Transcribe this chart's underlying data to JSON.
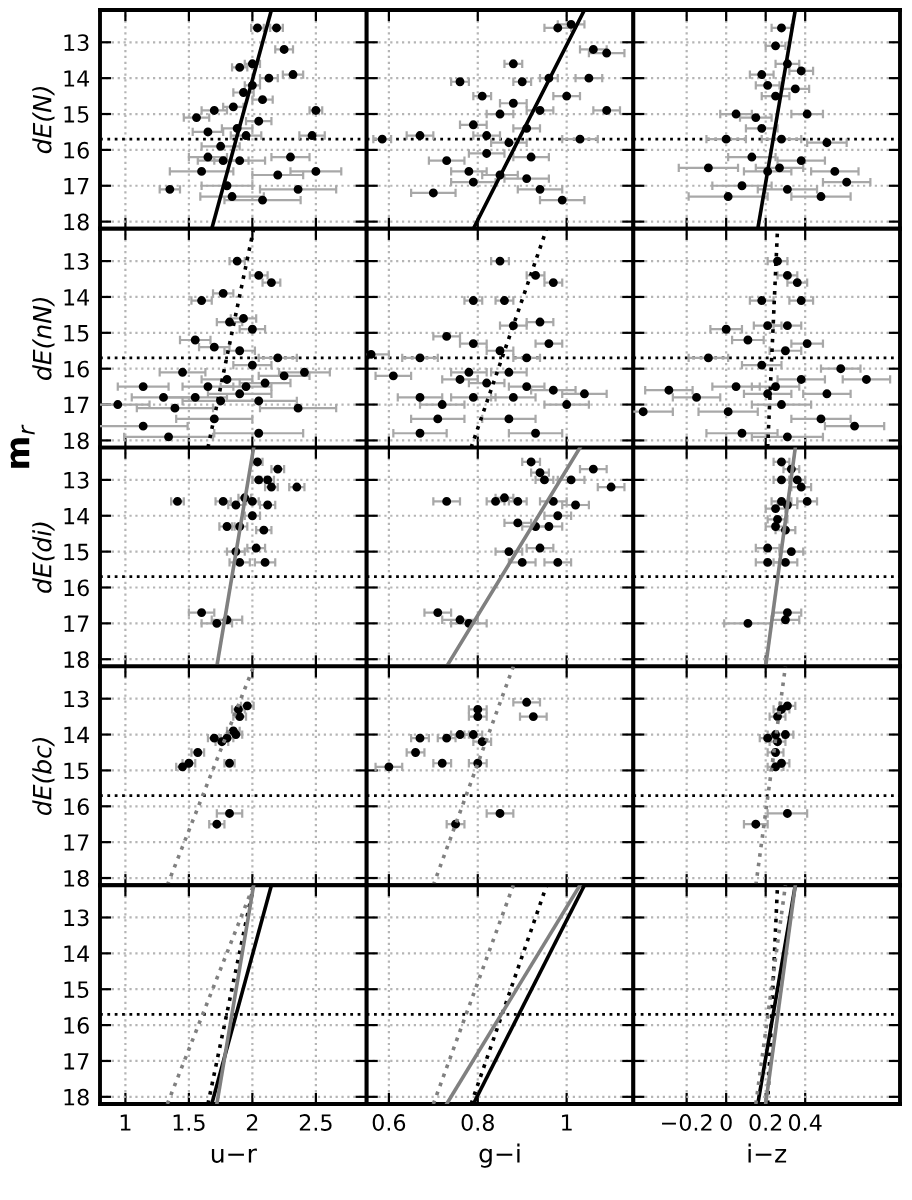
{
  "chart_data": [
    {
      "type": "scatter",
      "ylabel": "dE(N)",
      "xlim": [
        0.8,
        2.9
      ],
      "ylim": [
        18.2,
        12.1
      ],
      "xticks": [
        1,
        1.5,
        2,
        2.5
      ],
      "yticks": [
        13,
        14,
        15,
        16,
        17,
        18
      ],
      "grid": true,
      "tick_labels": "y",
      "ref_lines": [
        {
          "axis": "y",
          "value": 15.7,
          "line_style": "dotted",
          "color": "#000000"
        }
      ],
      "series": [
        {
          "type": "scatter",
          "marker": "circle",
          "color": "#000000",
          "x": [
            2.04,
            2.19,
            1.9,
            2.25,
            2.32,
            2.5,
            2.47,
            2.3,
            2.0,
            1.85,
            2.05,
            1.65,
            1.56,
            1.75,
            1.9,
            1.6,
            1.8,
            1.35,
            2.08,
            2.36,
            2.5,
            2.2,
            1.95,
            2.08,
            1.93,
            2.13,
            2.0,
            1.65,
            1.84,
            1.77,
            1.7,
            1.88
          ],
          "values": [
            12.6,
            12.6,
            13.7,
            13.2,
            13.9,
            14.9,
            15.6,
            16.2,
            14.2,
            14.8,
            15.2,
            15.5,
            15.1,
            15.9,
            16.3,
            16.6,
            17.0,
            17.1,
            17.4,
            17.1,
            16.6,
            16.7,
            15.6,
            14.6,
            14.4,
            14.0,
            13.6,
            16.2,
            17.3,
            16.3,
            14.9,
            15.4
          ],
          "xerrors": [
            0.05,
            0.05,
            0.06,
            0.07,
            0.08,
            0.05,
            0.1,
            0.15,
            0.06,
            0.08,
            0.1,
            0.12,
            0.1,
            0.15,
            0.2,
            0.25,
            0.2,
            0.08,
            0.3,
            0.3,
            0.2,
            0.2,
            0.12,
            0.08,
            0.08,
            0.07,
            0.06,
            0.15,
            0.25,
            0.2,
            0.1,
            0.12
          ]
        },
        {
          "type": "line",
          "marker": "none",
          "line_style": "solid",
          "color": "#000000",
          "x": [
            1.68,
            2.15
          ],
          "values": [
            18.2,
            12.1
          ]
        }
      ]
    },
    {
      "type": "scatter",
      "xlim": [
        0.55,
        1.15
      ],
      "ylim": [
        18.2,
        12.1
      ],
      "xticks": [
        0.6,
        0.8,
        1
      ],
      "yticks": [
        13,
        14,
        15,
        16,
        17,
        18
      ],
      "grid": true,
      "tick_labels": false,
      "ref_lines": [
        {
          "axis": "y",
          "value": 15.7,
          "line_style": "dotted",
          "color": "#000000"
        }
      ],
      "series": [
        {
          "type": "scatter",
          "marker": "circle",
          "color": "#000000",
          "x": [
            0.585,
            0.67,
            0.76,
            0.73,
            0.7,
            0.79,
            0.82,
            0.88,
            0.91,
            0.94,
            0.96,
            0.88,
            0.98,
            1.01,
            1.06,
            1.09,
            1.05,
            1.09,
            1.03,
            0.99,
            0.94,
            0.85,
            0.79,
            0.82,
            0.92,
            0.87,
            0.91,
            1.0,
            0.9,
            0.85,
            0.78,
            0.81
          ],
          "values": [
            15.7,
            15.6,
            14.1,
            16.3,
            17.2,
            15.3,
            16.1,
            14.7,
            15.4,
            14.9,
            14.0,
            13.6,
            12.6,
            12.5,
            13.2,
            13.3,
            14.0,
            14.9,
            15.7,
            17.4,
            17.1,
            16.7,
            16.9,
            15.6,
            16.2,
            15.8,
            16.8,
            14.5,
            14.1,
            15.0,
            16.6,
            14.5
          ],
          "xerrors": [
            0.02,
            0.03,
            0.02,
            0.04,
            0.05,
            0.03,
            0.04,
            0.03,
            0.03,
            0.03,
            0.02,
            0.02,
            0.03,
            0.03,
            0.03,
            0.04,
            0.03,
            0.03,
            0.04,
            0.05,
            0.05,
            0.04,
            0.05,
            0.03,
            0.04,
            0.04,
            0.05,
            0.03,
            0.02,
            0.03,
            0.04,
            0.02
          ]
        },
        {
          "type": "line",
          "marker": "none",
          "line_style": "solid",
          "color": "#000000",
          "x": [
            0.79,
            1.04
          ],
          "values": [
            18.2,
            12.1
          ]
        }
      ]
    },
    {
      "type": "scatter",
      "xlim": [
        -0.47,
        0.88
      ],
      "ylim": [
        18.2,
        12.1
      ],
      "xticks": [
        -0.2,
        0,
        0.2,
        0.4
      ],
      "yticks": [
        13,
        14,
        15,
        16,
        17,
        18
      ],
      "grid": true,
      "tick_labels": false,
      "ref_lines": [
        {
          "axis": "y",
          "value": 15.7,
          "line_style": "dotted",
          "color": "#000000"
        }
      ],
      "series": [
        {
          "type": "scatter",
          "marker": "circle",
          "color": "#000000",
          "x": [
            0.28,
            0.25,
            0.31,
            0.21,
            0.35,
            0.05,
            0.41,
            0.18,
            0.0,
            0.28,
            0.51,
            0.13,
            0.38,
            -0.09,
            0.21,
            0.55,
            0.08,
            0.31,
            0.61,
            0.01,
            0.48,
            0.25,
            0.15,
            0.38,
            0.27,
            0.18
          ],
          "values": [
            12.6,
            13.1,
            13.6,
            14.2,
            14.3,
            15.0,
            15.0,
            15.4,
            15.7,
            15.7,
            15.8,
            16.2,
            16.3,
            16.5,
            16.6,
            16.6,
            17.0,
            17.1,
            16.9,
            17.3,
            17.3,
            14.5,
            15.1,
            13.8,
            16.5,
            13.9
          ],
          "xerrors": [
            0.05,
            0.05,
            0.06,
            0.06,
            0.07,
            0.08,
            0.08,
            0.08,
            0.1,
            0.1,
            0.1,
            0.12,
            0.12,
            0.15,
            0.12,
            0.12,
            0.15,
            0.15,
            0.12,
            0.2,
            0.15,
            0.07,
            0.08,
            0.06,
            0.12,
            0.06
          ]
        },
        {
          "type": "line",
          "marker": "none",
          "line_style": "solid",
          "color": "#000000",
          "x": [
            0.16,
            0.35
          ],
          "values": [
            18.2,
            12.1
          ]
        }
      ]
    },
    {
      "type": "scatter",
      "ylabel": "dE(nN)",
      "annotations": [
        "m$_{r}$"
      ],
      "xlim": [
        0.8,
        2.9
      ],
      "ylim": [
        18.2,
        12.1
      ],
      "xticks": [
        1,
        1.5,
        2,
        2.5
      ],
      "yticks": [
        13,
        14,
        15,
        16,
        17,
        18
      ],
      "grid": true,
      "tick_labels": "y",
      "ref_lines": [
        {
          "axis": "y",
          "value": 15.7,
          "line_style": "dotted",
          "color": "#000000"
        }
      ],
      "series": [
        {
          "type": "scatter",
          "marker": "circle",
          "color": "#000000",
          "x": [
            1.88,
            2.05,
            2.15,
            1.6,
            1.77,
            1.82,
            1.93,
            1.55,
            1.7,
            1.9,
            2.0,
            2.2,
            1.45,
            1.65,
            1.8,
            1.95,
            2.1,
            2.25,
            2.41,
            1.14,
            1.3,
            0.94,
            1.39,
            1.55,
            1.75,
            2.05,
            2.36,
            1.14,
            1.34,
            2.05,
            1.7,
            1.9,
            2.0
          ],
          "values": [
            13.0,
            13.4,
            13.6,
            14.1,
            13.9,
            14.7,
            14.6,
            15.2,
            15.4,
            15.5,
            15.9,
            15.7,
            16.1,
            16.5,
            16.3,
            16.5,
            16.4,
            16.2,
            16.1,
            16.5,
            16.8,
            17.0,
            17.1,
            16.8,
            16.9,
            16.9,
            17.1,
            17.6,
            17.9,
            17.8,
            17.4,
            16.7,
            14.9
          ],
          "xerrors": [
            0.06,
            0.07,
            0.07,
            0.08,
            0.08,
            0.1,
            0.1,
            0.12,
            0.12,
            0.12,
            0.15,
            0.15,
            0.18,
            0.2,
            0.2,
            0.2,
            0.2,
            0.2,
            0.2,
            0.2,
            0.25,
            0.25,
            0.3,
            0.25,
            0.3,
            0.3,
            0.3,
            0.35,
            0.35,
            0.35,
            0.3,
            0.25,
            0.1
          ]
        },
        {
          "type": "line",
          "marker": "none",
          "line_style": "dotted",
          "color": "#000000",
          "x": [
            1.65,
            2.01
          ],
          "values": [
            18.2,
            12.1
          ]
        }
      ]
    },
    {
      "type": "scatter",
      "xlim": [
        0.55,
        1.15
      ],
      "ylim": [
        18.2,
        12.1
      ],
      "xticks": [
        0.6,
        0.8,
        1
      ],
      "yticks": [
        13,
        14,
        15,
        16,
        17,
        18
      ],
      "grid": true,
      "tick_labels": false,
      "ref_lines": [
        {
          "axis": "y",
          "value": 15.7,
          "line_style": "dotted",
          "color": "#000000"
        }
      ],
      "series": [
        {
          "type": "scatter",
          "marker": "circle",
          "color": "#000000",
          "x": [
            0.85,
            0.93,
            0.97,
            0.79,
            0.86,
            0.88,
            0.94,
            0.73,
            0.79,
            0.85,
            0.91,
            0.96,
            0.56,
            0.61,
            0.67,
            0.76,
            0.82,
            0.87,
            0.91,
            0.67,
            0.72,
            0.79,
            0.88,
            0.97,
            1.04,
            0.71,
            0.67,
            0.87,
            0.93,
            1.0,
            0.78
          ],
          "values": [
            13.0,
            13.4,
            13.6,
            14.1,
            14.1,
            14.8,
            14.7,
            15.1,
            15.3,
            15.5,
            15.7,
            15.3,
            15.6,
            16.2,
            15.7,
            16.3,
            16.4,
            16.1,
            16.5,
            16.8,
            17.0,
            16.8,
            16.8,
            16.6,
            16.7,
            17.4,
            17.8,
            17.4,
            17.8,
            17.0,
            16.1
          ],
          "xerrors": [
            0.02,
            0.02,
            0.02,
            0.02,
            0.02,
            0.03,
            0.03,
            0.03,
            0.03,
            0.03,
            0.03,
            0.03,
            0.04,
            0.04,
            0.04,
            0.04,
            0.04,
            0.04,
            0.04,
            0.05,
            0.05,
            0.05,
            0.05,
            0.05,
            0.05,
            0.06,
            0.06,
            0.06,
            0.06,
            0.05,
            0.04
          ]
        },
        {
          "type": "line",
          "marker": "none",
          "line_style": "dotted",
          "color": "#000000",
          "x": [
            0.785,
            0.955
          ],
          "values": [
            18.2,
            12.1
          ]
        }
      ]
    },
    {
      "type": "scatter",
      "xlim": [
        -0.47,
        0.88
      ],
      "ylim": [
        18.2,
        12.1
      ],
      "xticks": [
        -0.2,
        0,
        0.2,
        0.4
      ],
      "yticks": [
        13,
        14,
        15,
        16,
        17,
        18
      ],
      "grid": true,
      "tick_labels": false,
      "ref_lines": [
        {
          "axis": "y",
          "value": 15.7,
          "line_style": "dotted",
          "color": "#000000"
        }
      ],
      "series": [
        {
          "type": "scatter",
          "marker": "circle",
          "color": "#000000",
          "x": [
            0.26,
            0.31,
            0.36,
            0.18,
            0.38,
            0.21,
            0.31,
            0.0,
            0.11,
            0.3,
            0.41,
            -0.09,
            0.18,
            0.58,
            -0.29,
            -0.15,
            0.05,
            0.25,
            0.38,
            0.51,
            0.71,
            -0.42,
            0.01,
            0.28,
            0.48,
            0.65,
            0.08,
            0.31,
            0.21
          ],
          "values": [
            13.0,
            13.4,
            13.6,
            14.1,
            14.1,
            14.8,
            14.8,
            14.9,
            15.2,
            15.5,
            15.3,
            15.7,
            15.9,
            16.0,
            16.6,
            16.8,
            16.5,
            16.5,
            16.3,
            16.7,
            16.3,
            17.2,
            17.2,
            17.0,
            17.4,
            17.6,
            17.8,
            17.9,
            16.7
          ],
          "xerrors": [
            0.05,
            0.05,
            0.05,
            0.06,
            0.06,
            0.07,
            0.07,
            0.08,
            0.08,
            0.08,
            0.08,
            0.1,
            0.1,
            0.1,
            0.12,
            0.12,
            0.12,
            0.12,
            0.12,
            0.12,
            0.12,
            0.15,
            0.15,
            0.15,
            0.15,
            0.15,
            0.18,
            0.18,
            0.12
          ]
        },
        {
          "type": "line",
          "marker": "none",
          "line_style": "dotted",
          "color": "#000000",
          "x": [
            0.21,
            0.26
          ],
          "values": [
            18.2,
            12.1
          ]
        }
      ]
    },
    {
      "type": "scatter",
      "ylabel": "dE(di)",
      "xlim": [
        0.8,
        2.9
      ],
      "ylim": [
        18.2,
        12.1
      ],
      "xticks": [
        1,
        1.5,
        2,
        2.5
      ],
      "yticks": [
        13,
        14,
        15,
        16,
        17,
        18
      ],
      "grid": true,
      "tick_labels": "y",
      "ref_lines": [
        {
          "axis": "y",
          "value": 15.7,
          "line_style": "dotted",
          "color": "#000000"
        }
      ],
      "series": [
        {
          "type": "scatter",
          "marker": "circle",
          "color": "#000000",
          "x": [
            2.04,
            2.2,
            2.05,
            2.12,
            2.15,
            2.35,
            1.41,
            1.77,
            1.87,
            2.0,
            1.94,
            2.12,
            2.0,
            1.8,
            1.9,
            2.09,
            1.87,
            2.03,
            1.9,
            2.1,
            1.6,
            1.72,
            1.8
          ],
          "values": [
            12.5,
            12.7,
            13.0,
            13.0,
            13.2,
            13.2,
            13.6,
            13.6,
            13.7,
            13.6,
            13.5,
            13.7,
            14.0,
            14.3,
            14.3,
            14.4,
            15.0,
            14.9,
            15.3,
            15.3,
            16.7,
            17.0,
            16.9
          ],
          "xerrors": [
            0.04,
            0.05,
            0.05,
            0.05,
            0.05,
            0.06,
            0.05,
            0.06,
            0.06,
            0.05,
            0.05,
            0.06,
            0.06,
            0.06,
            0.06,
            0.06,
            0.07,
            0.07,
            0.08,
            0.08,
            0.1,
            0.12,
            0.12
          ]
        },
        {
          "type": "line",
          "marker": "none",
          "line_style": "solid",
          "color": "#808080",
          "x": [
            1.72,
            2.01
          ],
          "values": [
            18.2,
            12.1
          ]
        }
      ]
    },
    {
      "type": "scatter",
      "xlim": [
        0.55,
        1.15
      ],
      "ylim": [
        18.2,
        12.1
      ],
      "xticks": [
        0.6,
        0.8,
        1
      ],
      "yticks": [
        13,
        14,
        15,
        16,
        17,
        18
      ],
      "grid": true,
      "tick_labels": false,
      "ref_lines": [
        {
          "axis": "y",
          "value": 15.7,
          "line_style": "dotted",
          "color": "#000000"
        }
      ],
      "series": [
        {
          "type": "scatter",
          "marker": "circle",
          "color": "#000000",
          "x": [
            0.92,
            0.94,
            1.06,
            0.95,
            1.01,
            1.1,
            0.73,
            0.86,
            0.89,
            0.97,
            0.84,
            1.02,
            0.98,
            0.93,
            0.96,
            0.89,
            0.87,
            0.94,
            0.9,
            0.98,
            0.71,
            0.76,
            0.78
          ],
          "values": [
            12.5,
            12.8,
            12.7,
            13.0,
            13.0,
            13.2,
            13.6,
            13.5,
            13.6,
            13.6,
            13.6,
            13.7,
            14.0,
            14.3,
            14.3,
            14.2,
            15.0,
            14.9,
            15.3,
            15.3,
            16.7,
            16.9,
            17.0
          ],
          "xerrors": [
            0.02,
            0.02,
            0.03,
            0.02,
            0.03,
            0.03,
            0.03,
            0.02,
            0.02,
            0.03,
            0.02,
            0.03,
            0.03,
            0.03,
            0.03,
            0.03,
            0.03,
            0.03,
            0.03,
            0.03,
            0.03,
            0.04,
            0.04
          ]
        },
        {
          "type": "line",
          "marker": "none",
          "line_style": "solid",
          "color": "#808080",
          "x": [
            0.73,
            1.03
          ],
          "values": [
            18.2,
            12.1
          ]
        }
      ]
    },
    {
      "type": "scatter",
      "xlim": [
        -0.47,
        0.88
      ],
      "ylim": [
        18.2,
        12.1
      ],
      "xticks": [
        -0.2,
        0,
        0.2,
        0.4
      ],
      "yticks": [
        13,
        14,
        15,
        16,
        17,
        18
      ],
      "grid": true,
      "tick_labels": false,
      "ref_lines": [
        {
          "axis": "y",
          "value": 15.7,
          "line_style": "dotted",
          "color": "#000000"
        }
      ],
      "series": [
        {
          "type": "scatter",
          "marker": "circle",
          "color": "#000000",
          "x": [
            0.28,
            0.33,
            0.28,
            0.36,
            0.38,
            0.41,
            0.28,
            0.31,
            0.25,
            0.26,
            0.25,
            0.3,
            0.21,
            0.33,
            0.21,
            0.3,
            0.31,
            0.3,
            0.11
          ],
          "values": [
            12.5,
            12.7,
            13.0,
            13.0,
            13.2,
            13.6,
            13.6,
            13.7,
            13.8,
            14.1,
            14.3,
            14.4,
            14.9,
            15.0,
            15.3,
            15.3,
            16.7,
            16.9,
            17.0
          ],
          "xerrors": [
            0.04,
            0.04,
            0.04,
            0.04,
            0.05,
            0.05,
            0.05,
            0.05,
            0.05,
            0.05,
            0.05,
            0.05,
            0.06,
            0.06,
            0.06,
            0.06,
            0.07,
            0.07,
            0.12
          ]
        },
        {
          "type": "line",
          "marker": "none",
          "line_style": "solid",
          "color": "#808080",
          "x": [
            0.2,
            0.35
          ],
          "values": [
            18.2,
            12.1
          ]
        }
      ]
    },
    {
      "type": "scatter",
      "ylabel": "dE(bc)",
      "xlim": [
        0.8,
        2.9
      ],
      "ylim": [
        18.2,
        12.1
      ],
      "xticks": [
        1,
        1.5,
        2,
        2.5
      ],
      "yticks": [
        13,
        14,
        15,
        16,
        17,
        18
      ],
      "grid": true,
      "tick_labels": "y",
      "ref_lines": [
        {
          "axis": "y",
          "value": 15.7,
          "line_style": "dotted",
          "color": "#000000"
        }
      ],
      "series": [
        {
          "type": "scatter",
          "marker": "circle",
          "color": "#000000",
          "x": [
            1.96,
            1.89,
            1.9,
            1.85,
            1.87,
            1.7,
            1.8,
            1.76,
            1.57,
            1.5,
            1.45,
            1.82,
            1.82,
            1.72
          ],
          "values": [
            13.2,
            13.3,
            13.5,
            13.9,
            14.0,
            14.1,
            14.1,
            14.2,
            14.5,
            14.8,
            14.9,
            14.8,
            16.2,
            16.5
          ],
          "xerrors": [
            0.05,
            0.05,
            0.05,
            0.05,
            0.05,
            0.05,
            0.05,
            0.05,
            0.05,
            0.05,
            0.05,
            0.04,
            0.1,
            0.06
          ]
        },
        {
          "type": "line",
          "marker": "none",
          "line_style": "dotted",
          "color": "#808080",
          "x": [
            1.33,
            2.01
          ],
          "values": [
            18.2,
            12.1
          ]
        }
      ]
    },
    {
      "type": "scatter",
      "xlim": [
        0.55,
        1.15
      ],
      "ylim": [
        18.2,
        12.1
      ],
      "xticks": [
        0.6,
        0.8,
        1
      ],
      "yticks": [
        13,
        14,
        15,
        16,
        17,
        18
      ],
      "grid": true,
      "tick_labels": false,
      "ref_lines": [
        {
          "axis": "y",
          "value": 15.7,
          "line_style": "dotted",
          "color": "#000000"
        }
      ],
      "series": [
        {
          "type": "scatter",
          "marker": "circle",
          "color": "#000000",
          "x": [
            0.91,
            0.925,
            0.8,
            0.79,
            0.67,
            0.73,
            0.76,
            0.81,
            0.66,
            0.72,
            0.8,
            0.6,
            0.85,
            0.75,
            0.8
          ],
          "values": [
            13.1,
            13.5,
            13.5,
            14.0,
            14.1,
            14.1,
            14.0,
            14.2,
            14.5,
            14.8,
            14.8,
            14.9,
            16.2,
            16.5,
            13.3
          ],
          "xerrors": [
            0.03,
            0.03,
            0.02,
            0.02,
            0.02,
            0.02,
            0.02,
            0.02,
            0.02,
            0.02,
            0.02,
            0.03,
            0.03,
            0.02,
            0.02
          ]
        },
        {
          "type": "line",
          "marker": "none",
          "line_style": "dotted",
          "color": "#808080",
          "x": [
            0.7,
            0.88
          ],
          "values": [
            18.2,
            12.1
          ]
        }
      ]
    },
    {
      "type": "scatter",
      "xlim": [
        -0.47,
        0.88
      ],
      "ylim": [
        18.2,
        12.1
      ],
      "xticks": [
        -0.2,
        0,
        0.2,
        0.4
      ],
      "yticks": [
        13,
        14,
        15,
        16,
        17,
        18
      ],
      "grid": true,
      "tick_labels": false,
      "ref_lines": [
        {
          "axis": "y",
          "value": 15.7,
          "line_style": "dotted",
          "color": "#000000"
        }
      ],
      "series": [
        {
          "type": "scatter",
          "marker": "circle",
          "color": "#000000",
          "x": [
            0.31,
            0.28,
            0.26,
            0.25,
            0.21,
            0.3,
            0.26,
            0.25,
            0.28,
            0.25,
            0.31,
            0.15
          ],
          "values": [
            13.2,
            13.3,
            13.5,
            14.0,
            14.1,
            14.0,
            14.2,
            14.5,
            14.8,
            14.9,
            16.2,
            16.5
          ],
          "xerrors": [
            0.04,
            0.04,
            0.04,
            0.04,
            0.04,
            0.04,
            0.04,
            0.04,
            0.04,
            0.04,
            0.1,
            0.06
          ]
        },
        {
          "type": "line",
          "marker": "none",
          "line_style": "dotted",
          "color": "#808080",
          "x": [
            0.15,
            0.3
          ],
          "values": [
            18.2,
            12.1
          ]
        }
      ]
    },
    {
      "type": "line",
      "xlabel": "u−r",
      "xlim": [
        0.8,
        2.9
      ],
      "ylim": [
        18.2,
        12.1
      ],
      "xticks": [
        1,
        1.5,
        2,
        2.5
      ],
      "yticks": [
        13,
        14,
        15,
        16,
        17,
        18
      ],
      "grid": true,
      "ref_lines": [
        {
          "axis": "y",
          "value": 15.7,
          "line_style": "dotted",
          "color": "#000000"
        }
      ],
      "series": [
        {
          "line_style": "solid",
          "color": "#000000",
          "x": [
            1.68,
            2.15
          ],
          "values": [
            18.2,
            12.1
          ]
        },
        {
          "line_style": "dotted",
          "color": "#000000",
          "x": [
            1.65,
            2.01
          ],
          "values": [
            18.2,
            12.1
          ]
        },
        {
          "line_style": "solid",
          "color": "#808080",
          "x": [
            1.72,
            2.01
          ],
          "values": [
            18.2,
            12.1
          ]
        },
        {
          "line_style": "dotted",
          "color": "#808080",
          "x": [
            1.33,
            2.01
          ],
          "values": [
            18.2,
            12.1
          ]
        }
      ]
    },
    {
      "type": "line",
      "xlabel": "g−i",
      "xlim": [
        0.55,
        1.15
      ],
      "ylim": [
        18.2,
        12.1
      ],
      "xticks": [
        0.6,
        0.8,
        1
      ],
      "yticks": [
        13,
        14,
        15,
        16,
        17,
        18
      ],
      "grid": true,
      "tick_labels": "x",
      "ref_lines": [
        {
          "axis": "y",
          "value": 15.7,
          "line_style": "dotted",
          "color": "#000000"
        }
      ],
      "series": [
        {
          "line_style": "solid",
          "color": "#000000",
          "x": [
            0.79,
            1.04
          ],
          "values": [
            18.2,
            12.1
          ]
        },
        {
          "line_style": "dotted",
          "color": "#000000",
          "x": [
            0.785,
            0.955
          ],
          "values": [
            18.2,
            12.1
          ]
        },
        {
          "line_style": "solid",
          "color": "#808080",
          "x": [
            0.73,
            1.03
          ],
          "values": [
            18.2,
            12.1
          ]
        },
        {
          "line_style": "dotted",
          "color": "#808080",
          "x": [
            0.7,
            0.88
          ],
          "values": [
            18.2,
            12.1
          ]
        }
      ]
    },
    {
      "type": "line",
      "xlabel": "i−z",
      "xlim": [
        -0.47,
        0.88
      ],
      "ylim": [
        18.2,
        12.1
      ],
      "xticks": [
        {
          "value": -0.2,
          "label": "−0.2"
        },
        0,
        0.2,
        0.4
      ],
      "yticks": [
        13,
        14,
        15,
        16,
        17,
        18
      ],
      "grid": true,
      "tick_labels": "x",
      "ref_lines": [
        {
          "axis": "y",
          "value": 15.7,
          "line_style": "dotted",
          "color": "#000000"
        }
      ],
      "series": [
        {
          "line_style": "solid",
          "color": "#000000",
          "x": [
            0.16,
            0.35
          ],
          "values": [
            18.2,
            12.1
          ]
        },
        {
          "line_style": "dotted",
          "color": "#000000",
          "x": [
            0.21,
            0.26
          ],
          "values": [
            18.2,
            12.1
          ]
        },
        {
          "line_style": "solid",
          "color": "#808080",
          "x": [
            0.2,
            0.35
          ],
          "values": [
            18.2,
            12.1
          ]
        },
        {
          "line_style": "dotted",
          "color": "#808080",
          "x": [
            0.15,
            0.3
          ],
          "values": [
            18.2,
            12.1
          ]
        }
      ]
    }
  ]
}
